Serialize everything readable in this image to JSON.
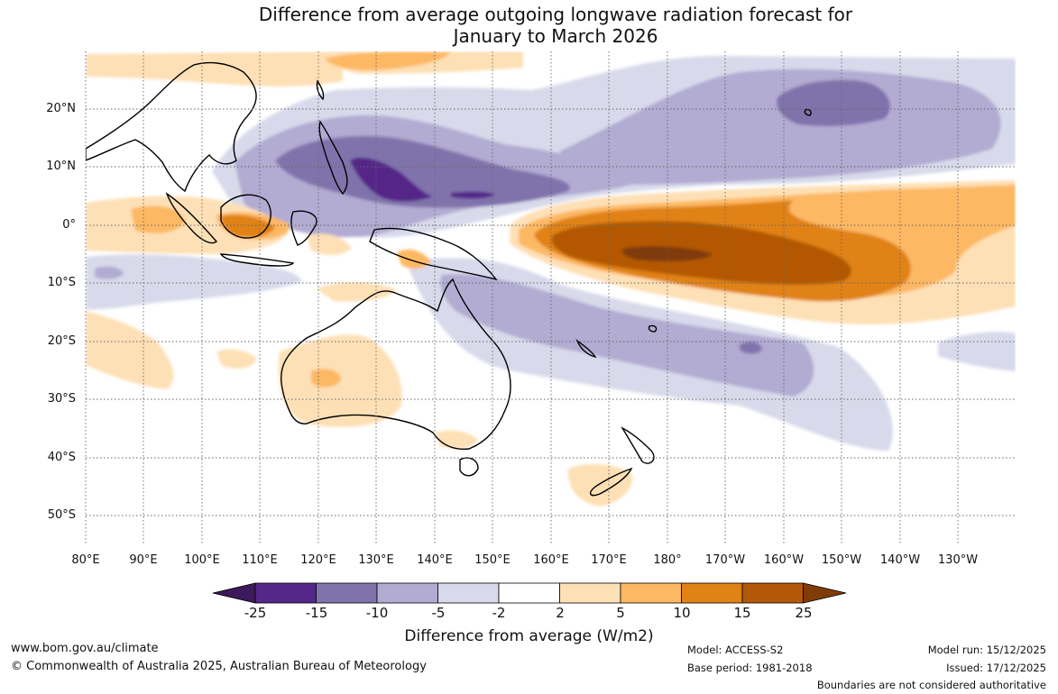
{
  "title": {
    "line1": "Difference from average outgoing longwave radiation forecast for",
    "line2": "January to March 2026"
  },
  "axes": {
    "lat_labels": [
      "20°N",
      "10°N",
      "0°",
      "10°S",
      "20°S",
      "30°S",
      "40°S",
      "50°S"
    ],
    "lon_labels": [
      "80°E",
      "90°E",
      "100°E",
      "110°E",
      "120°E",
      "130°E",
      "140°E",
      "150°E",
      "160°E",
      "170°E",
      "180°",
      "170°W",
      "160°W",
      "150°W",
      "140°W",
      "130°W"
    ]
  },
  "colorbar": {
    "title": "Difference from average (W/m2)",
    "tick_labels": [
      "-25",
      "-15",
      "-10",
      "-5",
      "-2",
      "2",
      "5",
      "10",
      "15",
      "25"
    ],
    "colors": [
      "#3c1a5b",
      "#542788",
      "#8073ac",
      "#b2abd2",
      "#d8daeb",
      "#ffffff",
      "#fee0b6",
      "#fdb863",
      "#e08214",
      "#b35806",
      "#7f3b08"
    ]
  },
  "footer": {
    "website": "www.bom.gov.au/climate",
    "copyright": "© Commonwealth of Australia 2025, Australian Bureau of Meteorology",
    "model": "Model: ACCESS-S2",
    "base_period": "Base period: 1981-2018",
    "model_run": "Model run: 15/12/2025",
    "issued": "Issued: 17/12/2025",
    "disclaimer": "Boundaries are not considered authoritative"
  },
  "icons": [
    "coastline-outline",
    "colorbar-arrow-left",
    "colorbar-arrow-right"
  ]
}
